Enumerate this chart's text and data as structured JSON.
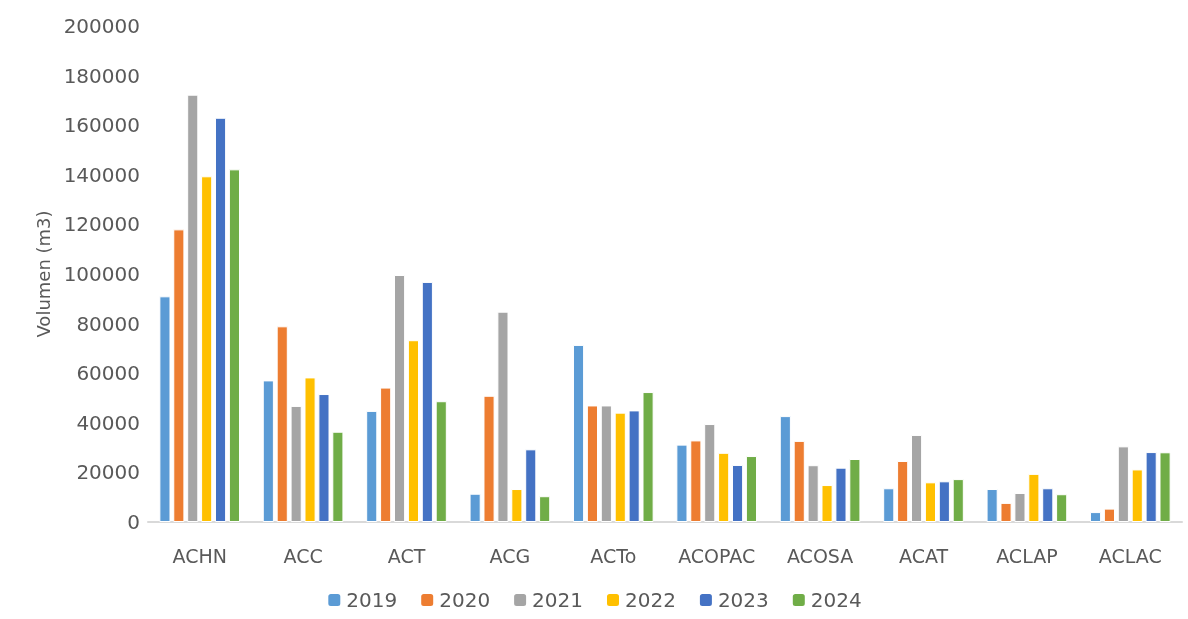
{
  "chart_data": {
    "type": "bar",
    "ylabel": "Volumen (m3)",
    "categories": [
      "ACHN",
      "ACC",
      "ACT",
      "ACG",
      "ACTo",
      "ACOPAC",
      "ACOSA",
      "ACAT",
      "ACLAP",
      "ACLAC"
    ],
    "series": [
      {
        "name": "2019",
        "color": "#5b9bd5",
        "values": [
          91000,
          57100,
          44800,
          11400,
          71400,
          31200,
          42700,
          13600,
          13300,
          4000
        ]
      },
      {
        "name": "2020",
        "color": "#ed7d31",
        "values": [
          118000,
          78900,
          54200,
          50900,
          47000,
          32900,
          32700,
          24600,
          7700,
          5400
        ]
      },
      {
        "name": "2021",
        "color": "#a5a5a5",
        "values": [
          172300,
          46800,
          99600,
          84800,
          47000,
          39500,
          22900,
          35100,
          11700,
          30500
        ]
      },
      {
        "name": "2022",
        "color": "#ffc000",
        "values": [
          139400,
          58300,
          73300,
          13300,
          44100,
          27900,
          14900,
          16000,
          19400,
          21200
        ]
      },
      {
        "name": "2023",
        "color": "#4472c4",
        "values": [
          163000,
          51600,
          96800,
          29300,
          45000,
          23000,
          21900,
          16400,
          13600,
          28200
        ]
      },
      {
        "name": "2024",
        "color": "#70ad47",
        "values": [
          142200,
          36400,
          48700,
          10400,
          52400,
          26600,
          25400,
          17300,
          11200,
          28100
        ]
      }
    ],
    "ylim": [
      0,
      200000
    ],
    "yticks": [
      0,
      20000,
      40000,
      60000,
      80000,
      100000,
      120000,
      140000,
      160000,
      180000,
      200000
    ],
    "grid": false,
    "legend": "bottom"
  }
}
